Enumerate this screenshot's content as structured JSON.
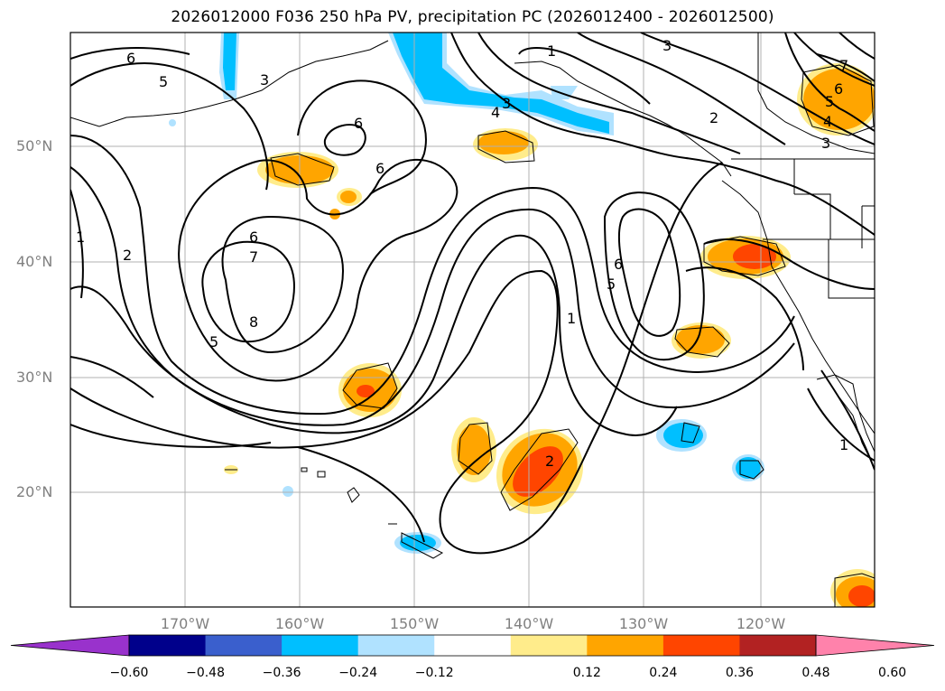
{
  "title": "2026012000 F036 250 hPa PV, precipitation PC (2026012400 - 2026012500)",
  "lat_labels": [
    "50°N",
    "40°N",
    "30°N",
    "20°N"
  ],
  "lon_labels": [
    "170°W",
    "160°W",
    "150°W",
    "140°W",
    "130°W",
    "120°W"
  ],
  "colorbar": {
    "ticks": [
      "−0.60",
      "−0.48",
      "−0.36",
      "−0.24",
      "−0.12",
      "0.12",
      "0.24",
      "0.36",
      "0.48",
      "0.60"
    ],
    "colors": [
      "#9932cc",
      "#00008b",
      "#3a5fcd",
      "#00bfff",
      "#b0e2ff",
      "#ffffff",
      "#ffec8b",
      "#ffa500",
      "#ff4500",
      "#b22222",
      "#ff82ab"
    ]
  },
  "contour_labels": [
    "1",
    "2",
    "3",
    "4",
    "5",
    "6",
    "7",
    "8"
  ],
  "palette": {
    "contour": "#000000",
    "grid": "#b0b0b0",
    "coast": "#000000"
  }
}
